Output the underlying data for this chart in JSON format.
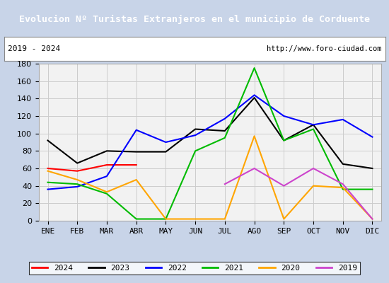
{
  "title": "Evolucion Nº Turistas Extranjeros en el municipio de Corduente",
  "subtitle_left": "2019 - 2024",
  "subtitle_right": "http://www.foro-ciudad.com",
  "title_bg_color": "#5b8dc8",
  "title_font_color": "#ffffff",
  "outer_bg_color": "#c8d4e8",
  "plot_bg_color": "#f2f2f2",
  "months": [
    "ENE",
    "FEB",
    "MAR",
    "ABR",
    "MAY",
    "JUN",
    "JUL",
    "AGO",
    "SEP",
    "OCT",
    "NOV",
    "DIC"
  ],
  "series": {
    "2024": {
      "color": "#ff0000",
      "values": [
        60,
        57,
        64,
        64,
        null,
        null,
        null,
        null,
        null,
        null,
        null,
        null
      ]
    },
    "2023": {
      "color": "#000000",
      "values": [
        92,
        66,
        80,
        79,
        79,
        105,
        103,
        141,
        92,
        110,
        65,
        60
      ]
    },
    "2022": {
      "color": "#0000ff",
      "values": [
        36,
        39,
        51,
        104,
        90,
        98,
        117,
        144,
        120,
        110,
        116,
        96
      ]
    },
    "2021": {
      "color": "#00bb00",
      "values": [
        44,
        42,
        31,
        2,
        2,
        80,
        95,
        175,
        92,
        105,
        36,
        36
      ]
    },
    "2020": {
      "color": "#ffa500",
      "values": [
        57,
        47,
        33,
        47,
        2,
        2,
        2,
        97,
        2,
        40,
        38,
        2
      ]
    },
    "2019": {
      "color": "#cc44cc",
      "values": [
        null,
        null,
        null,
        null,
        null,
        null,
        42,
        60,
        40,
        60,
        42,
        2
      ]
    }
  },
  "ylim": [
    0,
    180
  ],
  "yticks": [
    0,
    20,
    40,
    60,
    80,
    100,
    120,
    140,
    160,
    180
  ],
  "legend_order": [
    "2024",
    "2023",
    "2022",
    "2021",
    "2020",
    "2019"
  ]
}
